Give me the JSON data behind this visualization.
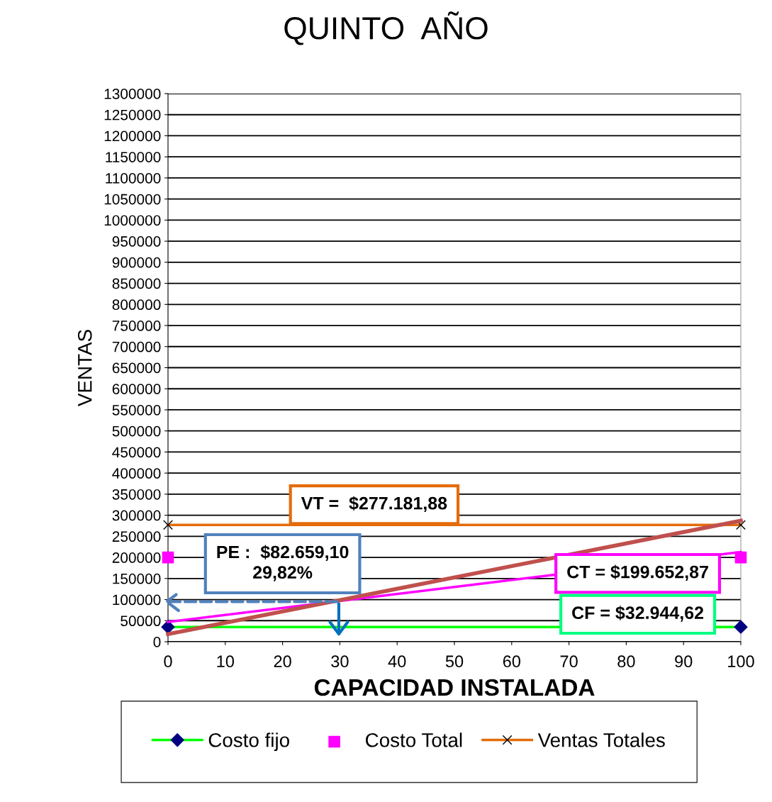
{
  "chart_data": {
    "type": "line",
    "title": "QUINTO  AÑO",
    "xlabel": "CAPACIDAD INSTALADA",
    "ylabel": "VENTAS",
    "x": [
      0,
      100
    ],
    "series": [
      {
        "name": "Costo fijo",
        "color": "#00ff00",
        "marker": "diamond",
        "values": [
          35000,
          35000
        ]
      },
      {
        "name": "Costo Total",
        "type": "scatter",
        "color": "#ff00ff",
        "marker": "square",
        "values": [
          200000,
          200000
        ]
      },
      {
        "name": "Ventas Totales",
        "color": "#e46c0a",
        "marker": "cross",
        "values": [
          277000,
          277000
        ]
      },
      {
        "color": "#ff00ff",
        "marker": "none",
        "values": [
          47000,
          213000
        ]
      },
      {
        "color": "#c0504d",
        "marker": "none",
        "values": [
          18000,
          287000
        ]
      }
    ],
    "annotations": [
      "VT =  $277.181,88",
      {
        "text": "PE :  $82.659,10\n29,82%",
        "x": 29.82,
        "y": 95000
      },
      "CT = $199.652,87",
      "CF = $32.944,62"
    ],
    "xlim": [
      0,
      100
    ],
    "xticks": [
      0,
      10,
      20,
      30,
      40,
      50,
      60,
      70,
      80,
      90,
      100
    ],
    "ylim": [
      0,
      1300000
    ],
    "yticks": [
      0,
      50000,
      100000,
      150000,
      200000,
      250000,
      300000,
      350000,
      400000,
      450000,
      500000,
      550000,
      600000,
      650000,
      700000,
      750000,
      800000,
      850000,
      900000,
      950000,
      1000000,
      1050000,
      1100000,
      1150000,
      1200000,
      1250000,
      1300000
    ],
    "grid": "y",
    "legend": "bottom"
  }
}
